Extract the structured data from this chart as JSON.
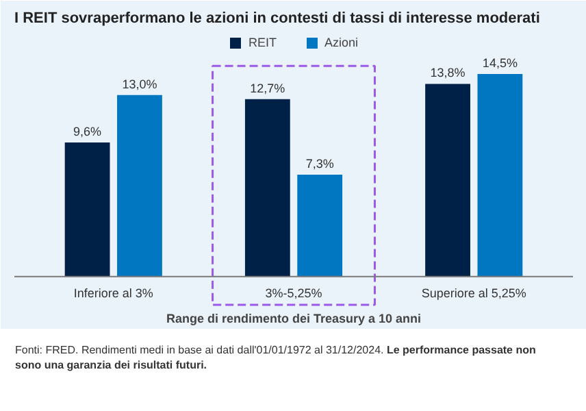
{
  "chart_data": {
    "type": "bar",
    "title": "I REIT sovraperformano le azioni in contesti di tassi di interesse moderati",
    "xlabel": "Range di rendimento dei Treasury a 10 anni",
    "categories": [
      "Inferiore al 3%",
      "3%-5,25%",
      "Superiore al 5,25%"
    ],
    "series": [
      {
        "name": "REIT",
        "color": "#002147",
        "values": [
          9.6,
          12.7,
          13.8
        ],
        "value_labels": [
          "9,6%",
          "12,7%",
          "13,8%"
        ]
      },
      {
        "name": "Azioni",
        "color": "#0077c0",
        "values": [
          13.0,
          7.3,
          14.5
        ],
        "value_labels": [
          "13,0%",
          "7,3%",
          "14,5%"
        ]
      }
    ],
    "legend": "top",
    "grid": false,
    "annotations": [
      "Fonti: FRED. Rendimenti medi in base ai dati dall'01/01/1972 al 31/12/2024.",
      "Le performance passate non sono una garanzia dei risultati futuri."
    ]
  }
}
